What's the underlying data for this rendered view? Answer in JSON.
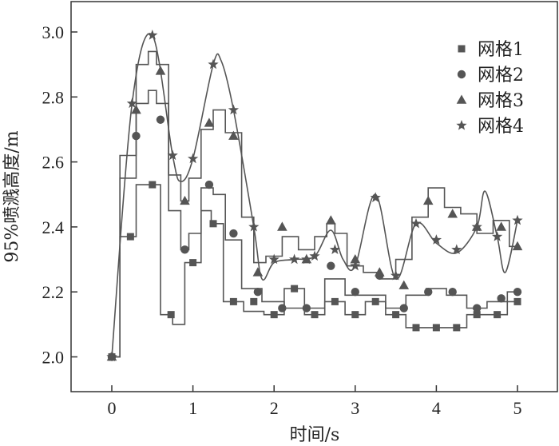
{
  "chart_data": {
    "type": "line",
    "title": "",
    "xlabel": "时间/s",
    "ylabel": "95%喷溅高度/m",
    "xlim": [
      -0.5,
      5.5
    ],
    "ylim": [
      1.9,
      3.1
    ],
    "xticks": [
      0,
      1,
      2,
      3,
      4,
      5
    ],
    "yticks": [
      2.0,
      2.2,
      2.4,
      2.6,
      2.8,
      3.0
    ],
    "xtick_labels": [
      "0",
      "1",
      "2",
      "3",
      "4",
      "5"
    ],
    "ytick_labels": [
      "2.0",
      "2.2",
      "2.4",
      "2.6",
      "2.8",
      "3.0"
    ],
    "grid": false,
    "legend_position": "top-right",
    "series": [
      {
        "name": "网格1",
        "marker": "square",
        "line_style": "step",
        "points": [
          [
            0.0,
            2.0
          ],
          [
            0.2,
            2.37
          ],
          [
            0.4,
            2.53
          ],
          [
            0.5,
            2.53
          ],
          [
            0.7,
            2.13
          ],
          [
            0.8,
            2.1
          ],
          [
            1.0,
            2.29
          ],
          [
            1.2,
            2.45
          ],
          [
            1.25,
            2.41
          ],
          [
            1.5,
            2.17
          ],
          [
            1.75,
            2.14
          ],
          [
            2.0,
            2.13
          ],
          [
            2.25,
            2.21
          ],
          [
            2.5,
            2.13
          ],
          [
            2.75,
            2.17
          ],
          [
            3.0,
            2.13
          ],
          [
            3.25,
            2.17
          ],
          [
            3.5,
            2.13
          ],
          [
            3.75,
            2.09
          ],
          [
            4.0,
            2.09
          ],
          [
            4.25,
            2.09
          ],
          [
            4.5,
            2.13
          ],
          [
            4.75,
            2.13
          ],
          [
            5.0,
            2.17
          ]
        ],
        "marker_points": [
          [
            0.0,
            2.0
          ],
          [
            0.23,
            2.37
          ],
          [
            0.5,
            2.53
          ],
          [
            0.73,
            2.13
          ],
          [
            1.0,
            2.29
          ],
          [
            1.25,
            2.41
          ],
          [
            1.5,
            2.17
          ],
          [
            1.75,
            2.17
          ],
          [
            2.0,
            2.13
          ],
          [
            2.25,
            2.21
          ],
          [
            2.5,
            2.13
          ],
          [
            2.75,
            2.17
          ],
          [
            3.0,
            2.13
          ],
          [
            3.25,
            2.17
          ],
          [
            3.5,
            2.13
          ],
          [
            3.75,
            2.09
          ],
          [
            4.0,
            2.09
          ],
          [
            4.25,
            2.09
          ],
          [
            4.5,
            2.13
          ],
          [
            4.75,
            2.13
          ],
          [
            5.0,
            2.17
          ]
        ]
      },
      {
        "name": "网格2",
        "marker": "circle",
        "line_style": "step",
        "points": [
          [
            0.0,
            2.0
          ],
          [
            0.2,
            2.55
          ],
          [
            0.4,
            2.78
          ],
          [
            0.5,
            2.82
          ],
          [
            0.6,
            2.78
          ],
          [
            0.8,
            2.45
          ],
          [
            0.9,
            2.33
          ],
          [
            1.0,
            2.38
          ],
          [
            1.2,
            2.52
          ],
          [
            1.3,
            2.5
          ],
          [
            1.5,
            2.36
          ],
          [
            1.7,
            2.21
          ],
          [
            2.0,
            2.17
          ],
          [
            2.25,
            2.15
          ],
          [
            2.5,
            2.15
          ],
          [
            2.75,
            2.24
          ],
          [
            3.0,
            2.19
          ],
          [
            3.25,
            2.19
          ],
          [
            3.5,
            2.15
          ],
          [
            3.75,
            2.19
          ],
          [
            4.0,
            2.21
          ],
          [
            4.25,
            2.19
          ],
          [
            4.5,
            2.15
          ],
          [
            4.75,
            2.17
          ],
          [
            5.0,
            2.2
          ]
        ],
        "marker_points": [
          [
            0.0,
            2.0
          ],
          [
            0.3,
            2.68
          ],
          [
            0.6,
            2.73
          ],
          [
            0.9,
            2.33
          ],
          [
            1.2,
            2.53
          ],
          [
            1.5,
            2.38
          ],
          [
            1.8,
            2.2
          ],
          [
            2.1,
            2.15
          ],
          [
            2.4,
            2.15
          ],
          [
            2.7,
            2.28
          ],
          [
            3.0,
            2.2
          ],
          [
            3.3,
            2.25
          ],
          [
            3.6,
            2.15
          ],
          [
            3.9,
            2.2
          ],
          [
            4.2,
            2.2
          ],
          [
            4.5,
            2.15
          ],
          [
            4.8,
            2.18
          ],
          [
            5.0,
            2.2
          ]
        ]
      },
      {
        "name": "网格3",
        "marker": "triangle",
        "line_style": "step",
        "points": [
          [
            0.0,
            2.0
          ],
          [
            0.2,
            2.62
          ],
          [
            0.4,
            2.9
          ],
          [
            0.5,
            2.94
          ],
          [
            0.6,
            2.9
          ],
          [
            0.8,
            2.56
          ],
          [
            0.9,
            2.48
          ],
          [
            1.0,
            2.55
          ],
          [
            1.2,
            2.7
          ],
          [
            1.3,
            2.76
          ],
          [
            1.5,
            2.69
          ],
          [
            1.7,
            2.43
          ],
          [
            1.8,
            2.29
          ],
          [
            2.0,
            2.31
          ],
          [
            2.2,
            2.37
          ],
          [
            2.4,
            2.33
          ],
          [
            2.6,
            2.37
          ],
          [
            2.7,
            2.41
          ],
          [
            2.8,
            2.38
          ],
          [
            3.0,
            2.28
          ],
          [
            3.2,
            2.26
          ],
          [
            3.4,
            2.24
          ],
          [
            3.6,
            2.3
          ],
          [
            3.8,
            2.43
          ],
          [
            4.0,
            2.52
          ],
          [
            4.2,
            2.46
          ],
          [
            4.4,
            2.44
          ],
          [
            4.6,
            2.38
          ],
          [
            4.8,
            2.42
          ],
          [
            5.0,
            2.34
          ]
        ],
        "marker_points": [
          [
            0.0,
            2.0
          ],
          [
            0.3,
            2.76
          ],
          [
            0.6,
            2.88
          ],
          [
            0.9,
            2.48
          ],
          [
            1.2,
            2.72
          ],
          [
            1.5,
            2.68
          ],
          [
            1.8,
            2.26
          ],
          [
            2.1,
            2.4
          ],
          [
            2.4,
            2.3
          ],
          [
            2.7,
            2.42
          ],
          [
            3.0,
            2.3
          ],
          [
            3.3,
            2.26
          ],
          [
            3.6,
            2.22
          ],
          [
            3.9,
            2.48
          ],
          [
            4.2,
            2.44
          ],
          [
            4.5,
            2.4
          ],
          [
            4.8,
            2.4
          ],
          [
            5.0,
            2.34
          ]
        ]
      },
      {
        "name": "网格4",
        "marker": "star",
        "line_style": "smooth",
        "points": [
          [
            0.0,
            2.0
          ],
          [
            0.25,
            2.78
          ],
          [
            0.5,
            2.99
          ],
          [
            0.75,
            2.62
          ],
          [
            0.85,
            2.54
          ],
          [
            1.0,
            2.61
          ],
          [
            1.25,
            2.9
          ],
          [
            1.35,
            2.91
          ],
          [
            1.5,
            2.76
          ],
          [
            1.75,
            2.4
          ],
          [
            1.85,
            2.24
          ],
          [
            2.0,
            2.29
          ],
          [
            2.25,
            2.3
          ],
          [
            2.5,
            2.31
          ],
          [
            2.7,
            2.39
          ],
          [
            2.85,
            2.3
          ],
          [
            3.0,
            2.28
          ],
          [
            3.25,
            2.5
          ],
          [
            3.5,
            2.24
          ],
          [
            3.75,
            2.41
          ],
          [
            4.0,
            2.35
          ],
          [
            4.25,
            2.32
          ],
          [
            4.5,
            2.4
          ],
          [
            4.6,
            2.51
          ],
          [
            4.75,
            2.37
          ],
          [
            4.85,
            2.26
          ],
          [
            5.0,
            2.42
          ]
        ],
        "marker_points": [
          [
            0.0,
            2.0
          ],
          [
            0.25,
            2.78
          ],
          [
            0.5,
            2.99
          ],
          [
            0.75,
            2.62
          ],
          [
            1.0,
            2.61
          ],
          [
            1.25,
            2.9
          ],
          [
            1.5,
            2.76
          ],
          [
            1.75,
            2.4
          ],
          [
            2.0,
            2.3
          ],
          [
            2.25,
            2.3
          ],
          [
            2.4,
            2.3
          ],
          [
            2.5,
            2.31
          ],
          [
            2.75,
            2.33
          ],
          [
            3.0,
            2.28
          ],
          [
            3.25,
            2.49
          ],
          [
            3.5,
            2.25
          ],
          [
            3.75,
            2.41
          ],
          [
            4.0,
            2.36
          ],
          [
            4.25,
            2.33
          ],
          [
            4.5,
            2.4
          ],
          [
            4.75,
            2.37
          ],
          [
            5.0,
            2.42
          ]
        ]
      }
    ]
  },
  "colors": {
    "series": "#555555",
    "axis": "#333333",
    "background": "#ffffff"
  }
}
